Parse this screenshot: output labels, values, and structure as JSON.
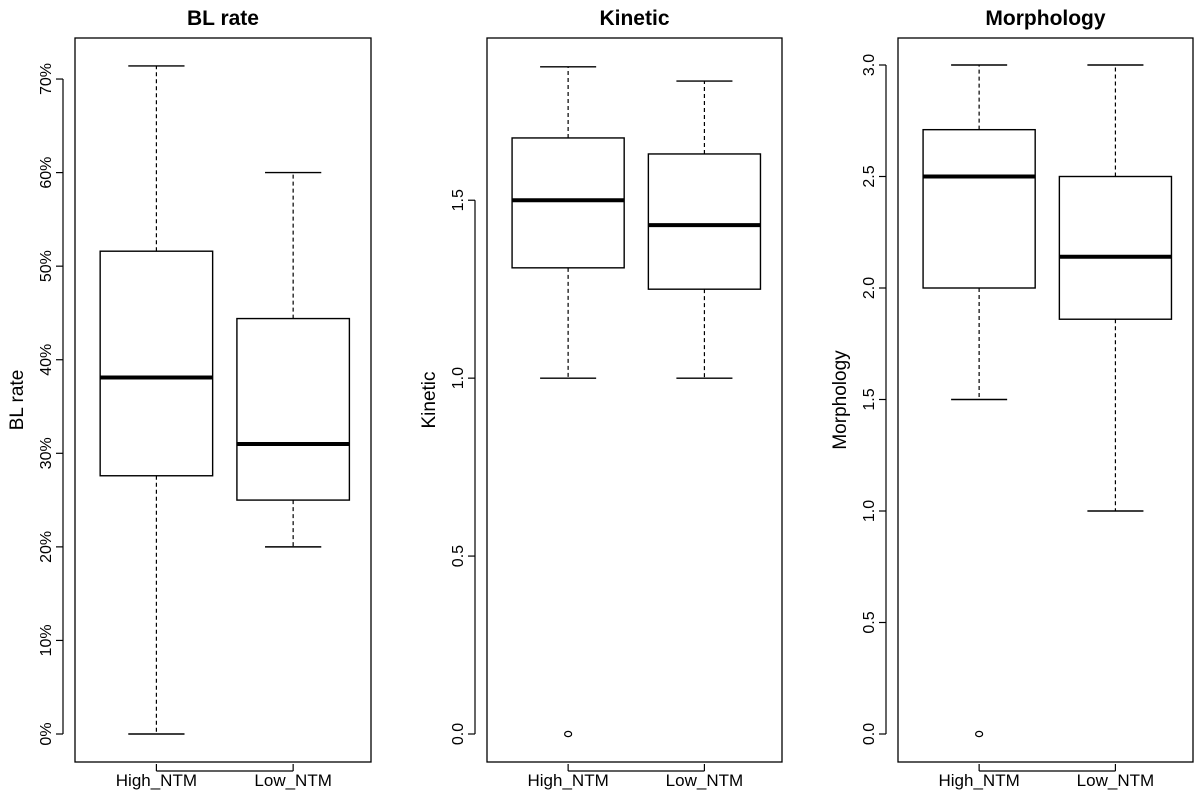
{
  "chart_data": [
    {
      "type": "box",
      "title": "BL rate",
      "ylabel": "BL rate",
      "ylim": [
        0,
        0.715
      ],
      "yticks": [
        0,
        0.1,
        0.2,
        0.3,
        0.4,
        0.5,
        0.6,
        0.7
      ],
      "ytick_labels": [
        "0%",
        "10%",
        "20%",
        "30%",
        "40%",
        "50%",
        "60%",
        "70%"
      ],
      "categories": [
        "High_NTM",
        "Low_NTM"
      ],
      "boxes": [
        {
          "category": "High_NTM",
          "min": 0.0,
          "q1": 0.276,
          "median": 0.381,
          "q3": 0.516,
          "max": 0.714,
          "outliers": []
        },
        {
          "category": "Low_NTM",
          "min": 0.2,
          "q1": 0.25,
          "median": 0.31,
          "q3": 0.444,
          "max": 0.6,
          "outliers": []
        }
      ]
    },
    {
      "type": "box",
      "title": "Kinetic",
      "ylabel": "Kinetic",
      "ylim": [
        0,
        1.88
      ],
      "yticks": [
        0,
        0.5,
        1.0,
        1.5
      ],
      "ytick_labels": [
        "0.0",
        "0.5",
        "1.0",
        "1.5"
      ],
      "categories": [
        "High_NTM",
        "Low_NTM"
      ],
      "boxes": [
        {
          "category": "High_NTM",
          "min": 1.0,
          "q1": 1.31,
          "median": 1.5,
          "q3": 1.675,
          "max": 1.875,
          "outliers": [
            0.0
          ]
        },
        {
          "category": "Low_NTM",
          "min": 1.0,
          "q1": 1.25,
          "median": 1.43,
          "q3": 1.63,
          "max": 1.835,
          "outliers": []
        }
      ]
    },
    {
      "type": "box",
      "title": "Morphology",
      "ylabel": "Morphology",
      "ylim": [
        0,
        3.0
      ],
      "yticks": [
        0,
        0.5,
        1.0,
        1.5,
        2.0,
        2.5,
        3.0
      ],
      "ytick_labels": [
        "0.0",
        "0.5",
        "1.0",
        "1.5",
        "2.0",
        "2.5",
        "3.0"
      ],
      "categories": [
        "High_NTM",
        "Low_NTM"
      ],
      "boxes": [
        {
          "category": "High_NTM",
          "min": 1.5,
          "q1": 2.0,
          "median": 2.5,
          "q3": 2.71,
          "max": 3.0,
          "outliers": [
            0.0
          ]
        },
        {
          "category": "Low_NTM",
          "min": 1.0,
          "q1": 1.86,
          "median": 2.14,
          "q3": 2.5,
          "max": 3.0,
          "outliers": []
        }
      ]
    }
  ]
}
